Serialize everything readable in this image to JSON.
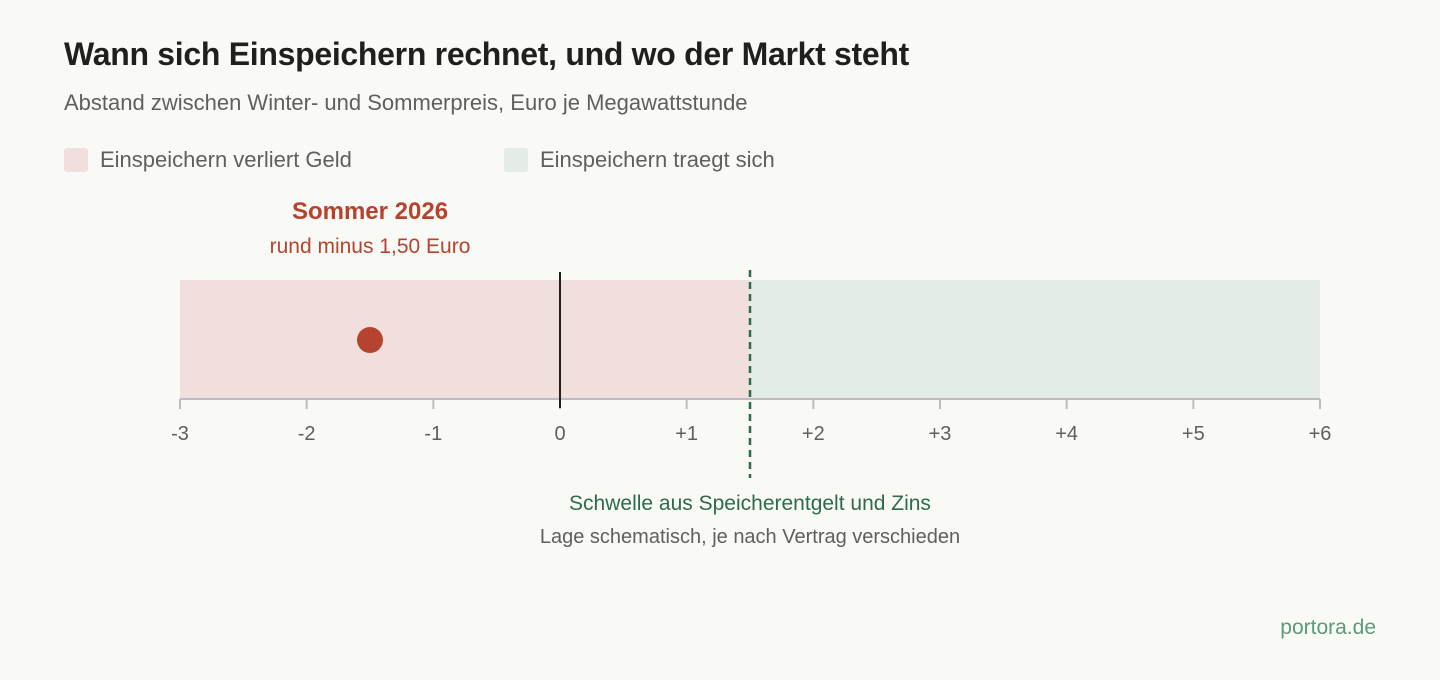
{
  "header": {
    "title": "Wann sich Einspeichern rechnet, und wo der Markt steht",
    "subtitle": "Abstand zwischen Winter- und Sommerpreis, Euro je Megawattstunde"
  },
  "legend": [
    {
      "label": "Einspeichern verliert Geld",
      "color": "#f1dfdd"
    },
    {
      "label": "Einspeichern traegt sich",
      "color": "#e3ece7"
    }
  ],
  "colors": {
    "loss": "#f1dfdd",
    "gain": "#e3ece7",
    "marker": "#b5432f",
    "threshold": "#2e6b4d",
    "axis": "#bdbdbd",
    "zero": "#1f1f1f",
    "tick_text": "#5f5f5f"
  },
  "chart_data": {
    "type": "scatter",
    "title": "Wann sich Einspeichern rechnet, und wo der Markt steht",
    "subtitle": "Abstand zwischen Winter- und Sommerpreis, Euro je Megawattstunde",
    "xlim": [
      -3,
      6
    ],
    "x_ticks": [
      -3,
      -2,
      -1,
      0,
      1,
      2,
      3,
      4,
      5,
      6
    ],
    "x_tick_labels": [
      "-3",
      "-2",
      "-1",
      "0",
      "+1",
      "+2",
      "+3",
      "+4",
      "+5",
      "+6"
    ],
    "regions": [
      {
        "name": "Einspeichern verliert Geld",
        "from": -3,
        "to": 1.5
      },
      {
        "name": "Einspeichern traegt sich",
        "from": 1.5,
        "to": 6
      }
    ],
    "points": [
      {
        "label": "Sommer 2026",
        "annotation": "rund minus 1,50 Euro",
        "x": -1.5
      }
    ],
    "reference_lines": [
      {
        "x": 0,
        "style": "solid"
      },
      {
        "x": 1.5,
        "style": "dashed",
        "label": "Schwelle aus Speicherentgelt und Zins",
        "note": "Lage schematisch, je nach Vertrag verschieden"
      }
    ],
    "grid": false,
    "legend_position": "top-left"
  },
  "footer": {
    "source": "portora.de"
  }
}
